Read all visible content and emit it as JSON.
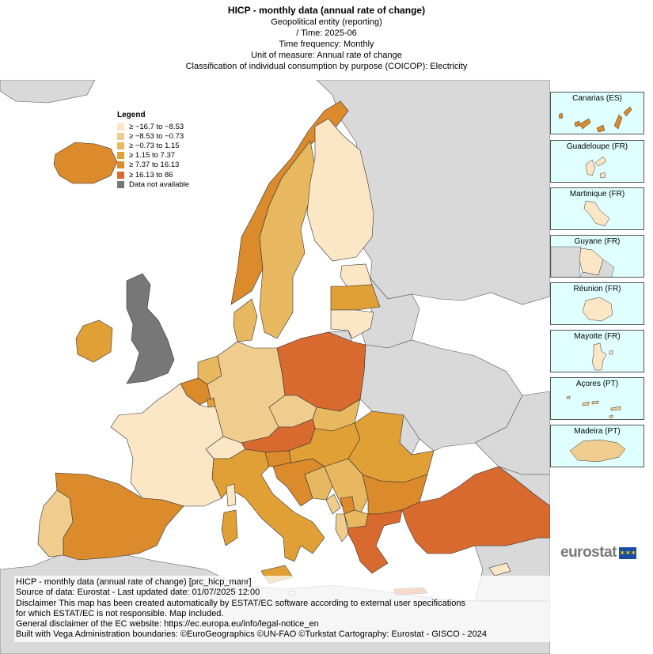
{
  "header": {
    "title": "HICP - monthly data (annual rate of change)",
    "lines": [
      "Geopolitical entity (reporting)",
      "/ Time:  2025-06",
      "Time frequency:  Monthly",
      "Unit of measure:  Annual rate of change",
      "Classification of individual consumption by purpose (COICOP):  Electricity"
    ]
  },
  "legend": {
    "title": "Legend",
    "items": [
      {
        "label": "≥ −16.7 to −8.53",
        "color": "#fbe6c6"
      },
      {
        "label": "≥ −8.53 to −0.73",
        "color": "#f0cd8f"
      },
      {
        "label": "≥ −0.73 to 1.15",
        "color": "#e8b860"
      },
      {
        "label": "≥ 1.15 to 7.37",
        "color": "#e0a035"
      },
      {
        "label": "≥ 7.37 to 16.13",
        "color": "#db8a2c"
      },
      {
        "label": "≥ 16.13 to 86",
        "color": "#d86a30"
      },
      {
        "label": "Data not available",
        "color": "#777777"
      }
    ]
  },
  "colors": {
    "sea": "#ffffff",
    "non_eu": "#d9d9d9",
    "no_data": "#777777",
    "inset_sea": "#e0ffff"
  },
  "insets": [
    {
      "label": "Canarias (ES)"
    },
    {
      "label": "Guadeloupe (FR)"
    },
    {
      "label": "Martinique (FR)"
    },
    {
      "label": "Guyane (FR)"
    },
    {
      "label": "Réunion (FR)"
    },
    {
      "label": "Mayotte (FR)"
    },
    {
      "label": "Açores (PT)"
    },
    {
      "label": "Madeira (PT)"
    }
  ],
  "logo": {
    "text": "eurostat",
    "flag_icon": "eu-flag-icon"
  },
  "footer": {
    "lines": [
      "HICP - monthly data (annual rate of change) [prc_hicp_manr]",
      "Source of data: Eurostat - Last updated date: 01/07/2025 12:00",
      "Disclaimer This map has been created automatically by ESTAT/EC software according to external user specifications",
      "for which ESTAT/EC is not responsible. Map included.",
      "General disclaimer of the EC website: https://ec.europa.eu/info/legal-notice_en",
      "Built with Vega Administration boundaries: ©EuroGeographics ©UN-FAO ©Turkstat Cartography: Eurostat - GISCO - 2024"
    ]
  },
  "countries": {
    "IS": {
      "class": 4
    },
    "NO": {
      "class": 4
    },
    "SE": {
      "class": 2
    },
    "FI": {
      "class": 0
    },
    "EE": {
      "class": 0
    },
    "LV": {
      "class": 3
    },
    "LT": {
      "class": 0
    },
    "DK": {
      "class": 2
    },
    "IE": {
      "class": 3
    },
    "UK": {
      "class": 6
    },
    "NL": {
      "class": 2
    },
    "BE": {
      "class": 4
    },
    "LU": {
      "class": 3
    },
    "DE": {
      "class": 1
    },
    "PL": {
      "class": 5
    },
    "CZ": {
      "class": 1
    },
    "SK": {
      "class": 2
    },
    "AT": {
      "class": 5
    },
    "CH": {
      "class": 0
    },
    "FR": {
      "class": 0
    },
    "ES": {
      "class": 4
    },
    "PT": {
      "class": 1
    },
    "IT": {
      "class": 3
    },
    "SI": {
      "class": 4
    },
    "HR": {
      "class": 4
    },
    "HU": {
      "class": 3
    },
    "RO": {
      "class": 3
    },
    "RS": {
      "class": 2
    },
    "BA": {
      "class": 2
    },
    "ME": {
      "class": 1
    },
    "XK": {
      "class": 4
    },
    "AL": {
      "class": 1
    },
    "MK": {
      "class": 2
    },
    "BG": {
      "class": 4
    },
    "GR": {
      "class": 5
    },
    "TR": {
      "class": 5
    },
    "CY": {
      "class": 0
    },
    "MT": {
      "class": 0
    }
  }
}
